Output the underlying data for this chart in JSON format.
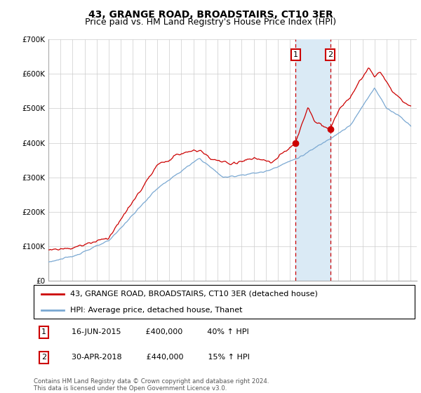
{
  "title": "43, GRANGE ROAD, BROADSTAIRS, CT10 3ER",
  "subtitle": "Price paid vs. HM Land Registry's House Price Index (HPI)",
  "ylim": [
    0,
    700000
  ],
  "yticks": [
    0,
    100000,
    200000,
    300000,
    400000,
    500000,
    600000,
    700000
  ],
  "ytick_labels": [
    "£0",
    "£100K",
    "£200K",
    "£300K",
    "£400K",
    "£500K",
    "£600K",
    "£700K"
  ],
  "xlim_start": 1995.0,
  "xlim_end": 2025.5,
  "sale1_date": 2015.46,
  "sale1_price": 400000,
  "sale1_label": "1",
  "sale2_date": 2018.33,
  "sale2_price": 440000,
  "sale2_label": "2",
  "sale1_annotation": "16-JUN-2015          £400,000          40% ↑ HPI",
  "sale2_annotation": "30-APR-2018          £440,000          15% ↑ HPI",
  "red_color": "#cc0000",
  "blue_color": "#7aa8d2",
  "shade_color": "#daeaf5",
  "grid_color": "#cccccc",
  "legend_label_red": "43, GRANGE ROAD, BROADSTAIRS, CT10 3ER (detached house)",
  "legend_label_blue": "HPI: Average price, detached house, Thanet",
  "footnote": "Contains HM Land Registry data © Crown copyright and database right 2024.\nThis data is licensed under the Open Government Licence v3.0.",
  "title_fontsize": 10,
  "subtitle_fontsize": 9,
  "tick_fontsize": 7.5,
  "legend_fontsize": 8,
  "annot_fontsize": 8
}
